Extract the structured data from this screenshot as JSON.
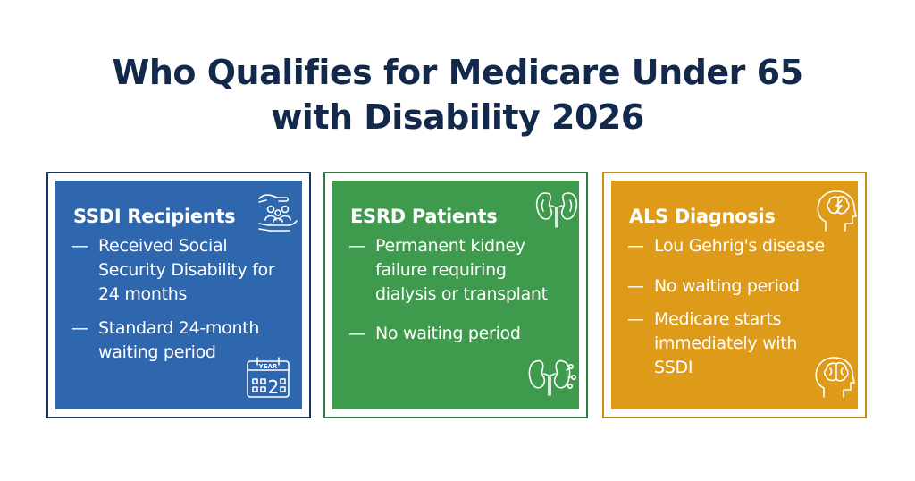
{
  "title": {
    "line1": "Who Qualifies for Medicare Under 65",
    "line2": "with Disability 2026"
  },
  "colors": {
    "title": "#13294b",
    "ssdi": "#2f67ae",
    "ssdi_border": "#1d3360",
    "esrd": "#3e9a4c",
    "esrd_border": "#2f7a3c",
    "als": "#de9b1a",
    "als_border": "#c98d17"
  },
  "cards": {
    "ssdi": {
      "title": "SSDI Recipients",
      "items": [
        {
          "dash": "—",
          "text": "Received Social Security Disability for 24 months"
        },
        {
          "dash": "—",
          "text": "Standard 24-month waiting period"
        }
      ],
      "icons": [
        "hand-people-icon",
        "calendar-icon"
      ],
      "calendar_label": "YEAR",
      "calendar_number": "2"
    },
    "esrd": {
      "title": "ESRD Patients",
      "items": [
        {
          "dash": "—",
          "text": "Permanent kidney failure requiring dialysis or transplant"
        },
        {
          "dash": "—",
          "text": "No waiting period"
        }
      ],
      "icons": [
        "kidney-icon",
        "kidney-icon"
      ]
    },
    "als": {
      "title": "ALS Diagnosis",
      "items": [
        {
          "dash": "—",
          "text": "Lou Gehrig's disease"
        },
        {
          "dash": "—",
          "text": "No waiting period"
        },
        {
          "dash": "—",
          "text": "Medicare starts immediately with SSDI"
        }
      ],
      "icons": [
        "head-brain-icon",
        "head-brain-icon"
      ]
    }
  }
}
